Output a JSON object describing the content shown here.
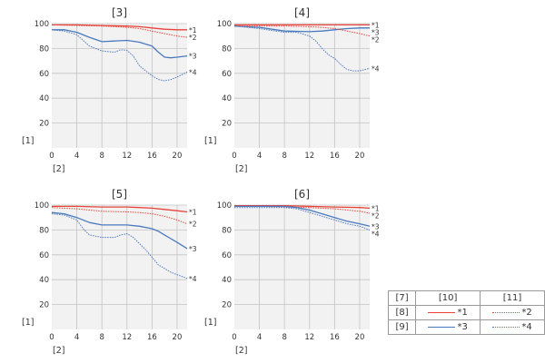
{
  "chart_data": [
    {
      "type": "line",
      "title": "[3]",
      "ylabel": "[1]",
      "xlabel": "[2]",
      "xlim": [
        0,
        21.6
      ],
      "ylim": [
        0,
        100
      ],
      "xticks": [
        0,
        4,
        8,
        12,
        16,
        20
      ],
      "yticks": [
        20,
        40,
        60,
        80,
        100
      ],
      "series": [
        {
          "name": "*1",
          "color": "#e8443a",
          "style": "solid",
          "x": [
            0,
            4,
            8,
            12,
            14,
            16,
            18,
            20,
            21.6
          ],
          "y": [
            99,
            99,
            98.5,
            98,
            97.5,
            96.5,
            95.5,
            95,
            95
          ]
        },
        {
          "name": "*2",
          "color": "#e8443a",
          "style": "dotted",
          "x": [
            0,
            4,
            8,
            12,
            14,
            16,
            18,
            20,
            21.6
          ],
          "y": [
            99,
            98.5,
            98,
            97,
            96,
            94,
            92,
            90,
            89
          ]
        },
        {
          "name": "*3",
          "color": "#4a79bf",
          "style": "solid",
          "x": [
            0,
            2,
            4,
            6,
            8,
            10,
            12,
            14,
            16,
            17,
            18,
            19,
            20,
            21.6
          ],
          "y": [
            95,
            95,
            93,
            89,
            85.5,
            86,
            86.5,
            85,
            82,
            77,
            73,
            72.5,
            73,
            74
          ]
        },
        {
          "name": "*4",
          "color": "#4a79bf",
          "style": "dotted",
          "x": [
            0,
            2,
            4,
            6,
            8,
            10,
            11,
            12,
            13,
            14,
            15,
            16,
            17,
            18,
            19,
            20,
            21.6
          ],
          "y": [
            95,
            94,
            91,
            82,
            78,
            77,
            79,
            78.5,
            74,
            66,
            62,
            58,
            55,
            54,
            55,
            57,
            61
          ]
        }
      ]
    },
    {
      "type": "line",
      "title": "[4]",
      "ylabel": "[1]",
      "xlabel": "[2]",
      "xlim": [
        0,
        21.6
      ],
      "ylim": [
        0,
        100
      ],
      "xticks": [
        0,
        4,
        8,
        12,
        16,
        20
      ],
      "yticks": [
        20,
        40,
        60,
        80,
        100
      ],
      "series": [
        {
          "name": "*1",
          "color": "#e8443a",
          "style": "solid",
          "x": [
            0,
            4,
            8,
            12,
            16,
            20,
            21.6
          ],
          "y": [
            99,
            99,
            99,
            99,
            99,
            99,
            99
          ]
        },
        {
          "name": "*3",
          "color": "#4a79bf",
          "style": "solid",
          "x": [
            0,
            4,
            8,
            12,
            14,
            16,
            18,
            20,
            21.6
          ],
          "y": [
            98,
            97,
            94,
            93.5,
            94,
            95,
            96,
            96.5,
            96.5
          ]
        },
        {
          "name": "*2",
          "color": "#e8443a",
          "style": "dotted",
          "x": [
            0,
            4,
            8,
            12,
            14,
            16,
            18,
            20,
            21.6
          ],
          "y": [
            98,
            98,
            98,
            97.5,
            97,
            96,
            94,
            92,
            90
          ]
        },
        {
          "name": "*4",
          "color": "#4a79bf",
          "style": "dotted",
          "x": [
            0,
            4,
            8,
            10,
            12,
            13,
            14,
            15,
            16,
            17,
            18,
            19,
            20,
            21.6
          ],
          "y": [
            98,
            96,
            93,
            93,
            90,
            86,
            80,
            75,
            72,
            67,
            63,
            62,
            62,
            64
          ]
        }
      ]
    },
    {
      "type": "line",
      "title": "[5]",
      "ylabel": "[1]",
      "xlabel": "[2]",
      "xlim": [
        0,
        21.6
      ],
      "ylim": [
        0,
        100
      ],
      "xticks": [
        0,
        4,
        8,
        12,
        16,
        20
      ],
      "yticks": [
        20,
        40,
        60,
        80,
        100
      ],
      "series": [
        {
          "name": "*1",
          "color": "#e8443a",
          "style": "solid",
          "x": [
            0,
            4,
            8,
            12,
            14,
            16,
            18,
            20,
            21.6
          ],
          "y": [
            99,
            99,
            98.5,
            98.5,
            98,
            97.5,
            96.5,
            95.5,
            94.5
          ]
        },
        {
          "name": "*2",
          "color": "#e8443a",
          "style": "dotted",
          "x": [
            0,
            4,
            8,
            12,
            14,
            16,
            18,
            20,
            21.6
          ],
          "y": [
            98,
            97,
            95,
            94.5,
            94,
            93,
            91,
            88,
            85
          ]
        },
        {
          "name": "*3",
          "color": "#4a79bf",
          "style": "solid",
          "x": [
            0,
            2,
            4,
            6,
            8,
            10,
            12,
            14,
            16,
            17,
            18,
            19,
            20,
            21.6
          ],
          "y": [
            94,
            93,
            90,
            86,
            84,
            84,
            84,
            83,
            81,
            79,
            76,
            73,
            70,
            65
          ]
        },
        {
          "name": "*4",
          "color": "#4a79bf",
          "style": "dotted",
          "x": [
            0,
            2,
            4,
            5,
            6,
            8,
            10,
            11,
            12,
            13,
            14,
            15,
            16,
            17,
            18,
            19,
            20,
            21.6
          ],
          "y": [
            93,
            92,
            88,
            81,
            76,
            74,
            74,
            76,
            77,
            74,
            69,
            64,
            58,
            52,
            49,
            46,
            44,
            41
          ]
        }
      ]
    },
    {
      "type": "line",
      "title": "[6]",
      "ylabel": "[1]",
      "xlabel": "[2]",
      "xlim": [
        0,
        21.6
      ],
      "ylim": [
        0,
        100
      ],
      "xticks": [
        0,
        4,
        8,
        12,
        16,
        20
      ],
      "yticks": [
        20,
        40,
        60,
        80,
        100
      ],
      "series": [
        {
          "name": "*1",
          "color": "#e8443a",
          "style": "solid",
          "x": [
            0,
            4,
            8,
            12,
            16,
            20,
            21.6
          ],
          "y": [
            99.5,
            99.5,
            99.5,
            99,
            98.5,
            98,
            97.5
          ]
        },
        {
          "name": "*2",
          "color": "#e8443a",
          "style": "dotted",
          "x": [
            0,
            4,
            8,
            12,
            16,
            20,
            21.6
          ],
          "y": [
            99,
            99,
            98.5,
            98,
            97,
            95,
            93.5
          ]
        },
        {
          "name": "*3",
          "color": "#4a79bf",
          "style": "solid",
          "x": [
            0,
            4,
            8,
            10,
            12,
            14,
            16,
            18,
            20,
            21.6
          ],
          "y": [
            99,
            99,
            99,
            98,
            96,
            93,
            90,
            87,
            85,
            83
          ]
        },
        {
          "name": "*4",
          "color": "#4a79bf",
          "style": "dotted",
          "x": [
            0,
            4,
            8,
            10,
            12,
            14,
            16,
            18,
            20,
            21.6
          ],
          "y": [
            98,
            98,
            98,
            97,
            94,
            91,
            88,
            85,
            83,
            80
          ]
        }
      ]
    }
  ],
  "legend": {
    "header": [
      "[7]",
      "[10]",
      "[11]"
    ],
    "rows": [
      {
        "label": "[8]",
        "solid_text": "*1",
        "dotted_text": "*2",
        "color": "#e8443a"
      },
      {
        "label": "[9]",
        "solid_text": "*3",
        "dotted_text": "*4",
        "color": "#4a79bf"
      }
    ]
  }
}
